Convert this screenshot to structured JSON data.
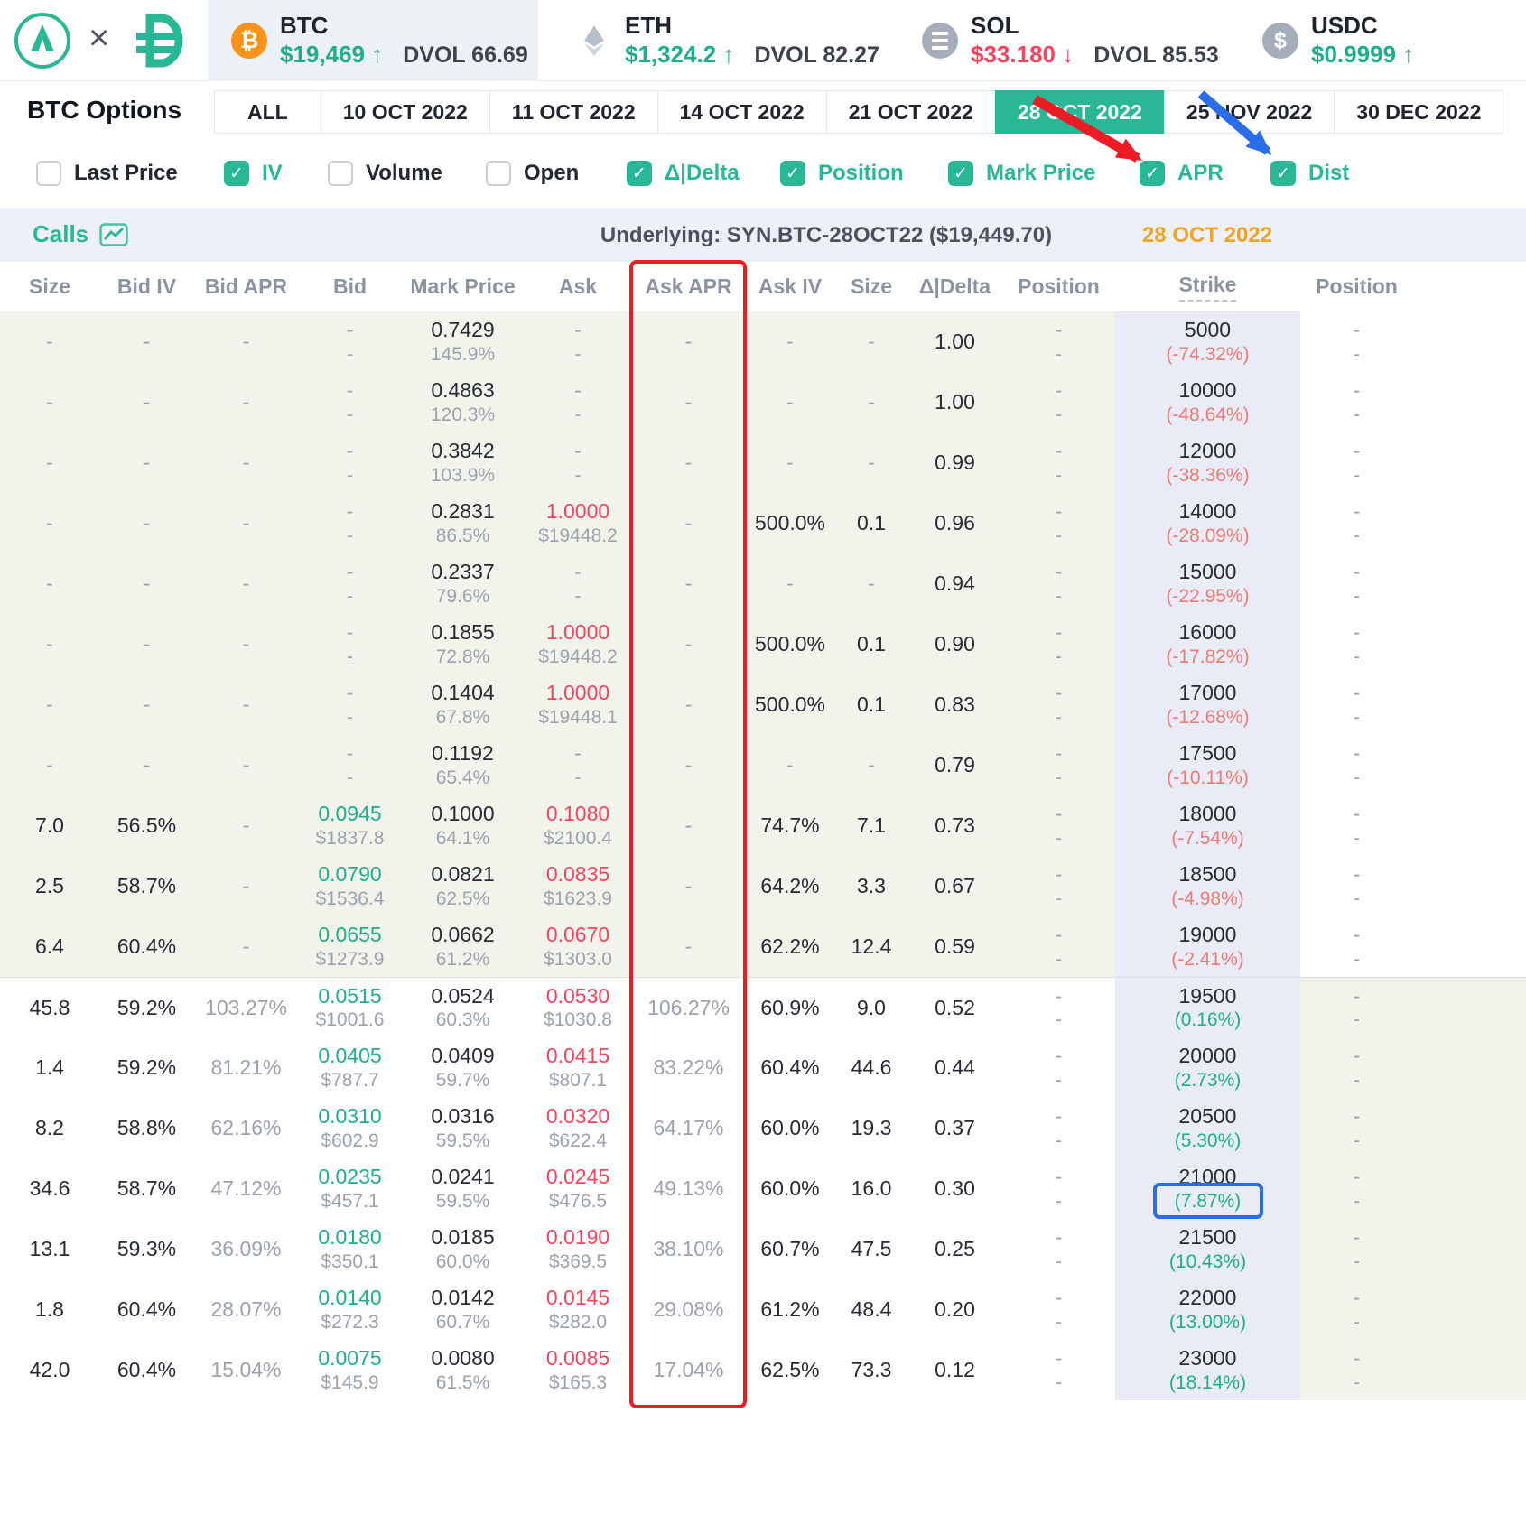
{
  "colors": {
    "accent": "#2ab795",
    "green": "#1fae8b",
    "red": "#f4455f",
    "negative_dist": "#f07a72",
    "expiry_orange": "#f0a32b",
    "annotation_red": "#ec1c24",
    "annotation_blue": "#2b6de8"
  },
  "top_bar": {
    "tickers": [
      {
        "symbol": "BTC",
        "icon": "btc-icon",
        "price": "$19,469",
        "direction": "up",
        "dvol": "DVOL 66.69",
        "selected": true
      },
      {
        "symbol": "ETH",
        "icon": "eth-icon",
        "price": "$1,324.2",
        "direction": "up",
        "dvol": "DVOL 82.27",
        "selected": false
      },
      {
        "symbol": "SOL",
        "icon": "sol-icon",
        "price": "$33.180",
        "direction": "down",
        "dvol": "DVOL 85.53",
        "selected": false
      },
      {
        "symbol": "USDC",
        "icon": "usdc-icon",
        "price": "$0.9999",
        "direction": "up",
        "dvol": "",
        "selected": false
      }
    ]
  },
  "nav": {
    "title": "BTC Options",
    "tabs": [
      {
        "label": "ALL",
        "selected": false
      },
      {
        "label": "10 OCT 2022",
        "selected": false
      },
      {
        "label": "11 OCT 2022",
        "selected": false
      },
      {
        "label": "14 OCT 2022",
        "selected": false
      },
      {
        "label": "21 OCT 2022",
        "selected": false
      },
      {
        "label": "28 OCT 2022",
        "selected": true
      },
      {
        "label": "25 NOV 2022",
        "selected": false
      },
      {
        "label": "30 DEC 2022",
        "selected": false
      }
    ]
  },
  "filters": [
    {
      "label": "Last Price",
      "checked": false
    },
    {
      "label": "IV",
      "checked": true
    },
    {
      "label": "Volume",
      "checked": false
    },
    {
      "label": "Open",
      "checked": false
    },
    {
      "label": "Δ|Delta",
      "checked": true
    },
    {
      "label": "Position",
      "checked": true
    },
    {
      "label": "Mark Price",
      "checked": true
    },
    {
      "label": "APR",
      "checked": true
    },
    {
      "label": "Dist",
      "checked": true
    }
  ],
  "chain": {
    "section_label": "Calls",
    "underlying": "Underlying: SYN.BTC-28OCT22 ($19,449.70)",
    "expiry": "28 OCT 2022",
    "columns": [
      "Size",
      "Bid IV",
      "Bid APR",
      "Bid",
      "Mark Price",
      "Ask",
      "Ask APR",
      "Ask IV",
      "Size",
      "Δ|Delta",
      "Position",
      "Strike",
      "Position"
    ],
    "rows": [
      {
        "size": "-",
        "bid_iv": "-",
        "bid_apr": "-",
        "bid": [
          "-",
          "-"
        ],
        "mark": [
          "0.7429",
          "145.9%"
        ],
        "ask": [
          "-",
          "-"
        ],
        "ask_apr": "-",
        "ask_iv": "-",
        "size2": "-",
        "delta": "1.00",
        "position": [
          "-",
          "-"
        ],
        "strike": "5000",
        "dist": "(-74.32%)",
        "dist_sign": "neg",
        "position2": [
          "-",
          "-"
        ],
        "itm": true
      },
      {
        "size": "-",
        "bid_iv": "-",
        "bid_apr": "-",
        "bid": [
          "-",
          "-"
        ],
        "mark": [
          "0.4863",
          "120.3%"
        ],
        "ask": [
          "-",
          "-"
        ],
        "ask_apr": "-",
        "ask_iv": "-",
        "size2": "-",
        "delta": "1.00",
        "position": [
          "-",
          "-"
        ],
        "strike": "10000",
        "dist": "(-48.64%)",
        "dist_sign": "neg",
        "position2": [
          "-",
          "-"
        ],
        "itm": true
      },
      {
        "size": "-",
        "bid_iv": "-",
        "bid_apr": "-",
        "bid": [
          "-",
          "-"
        ],
        "mark": [
          "0.3842",
          "103.9%"
        ],
        "ask": [
          "-",
          "-"
        ],
        "ask_apr": "-",
        "ask_iv": "-",
        "size2": "-",
        "delta": "0.99",
        "position": [
          "-",
          "-"
        ],
        "strike": "12000",
        "dist": "(-38.36%)",
        "dist_sign": "neg",
        "position2": [
          "-",
          "-"
        ],
        "itm": true
      },
      {
        "size": "-",
        "bid_iv": "-",
        "bid_apr": "-",
        "bid": [
          "-",
          "-"
        ],
        "mark": [
          "0.2831",
          "86.5%"
        ],
        "ask": [
          "1.0000",
          "$19448.2"
        ],
        "ask_apr": "-",
        "ask_iv": "500.0%",
        "size2": "0.1",
        "delta": "0.96",
        "position": [
          "-",
          "-"
        ],
        "strike": "14000",
        "dist": "(-28.09%)",
        "dist_sign": "neg",
        "position2": [
          "-",
          "-"
        ],
        "itm": true
      },
      {
        "size": "-",
        "bid_iv": "-",
        "bid_apr": "-",
        "bid": [
          "-",
          "-"
        ],
        "mark": [
          "0.2337",
          "79.6%"
        ],
        "ask": [
          "-",
          "-"
        ],
        "ask_apr": "-",
        "ask_iv": "-",
        "size2": "-",
        "delta": "0.94",
        "position": [
          "-",
          "-"
        ],
        "strike": "15000",
        "dist": "(-22.95%)",
        "dist_sign": "neg",
        "position2": [
          "-",
          "-"
        ],
        "itm": true
      },
      {
        "size": "-",
        "bid_iv": "-",
        "bid_apr": "-",
        "bid": [
          "-",
          "-"
        ],
        "mark": [
          "0.1855",
          "72.8%"
        ],
        "ask": [
          "1.0000",
          "$19448.2"
        ],
        "ask_apr": "-",
        "ask_iv": "500.0%",
        "size2": "0.1",
        "delta": "0.90",
        "position": [
          "-",
          "-"
        ],
        "strike": "16000",
        "dist": "(-17.82%)",
        "dist_sign": "neg",
        "position2": [
          "-",
          "-"
        ],
        "itm": true
      },
      {
        "size": "-",
        "bid_iv": "-",
        "bid_apr": "-",
        "bid": [
          "-",
          "-"
        ],
        "mark": [
          "0.1404",
          "67.8%"
        ],
        "ask": [
          "1.0000",
          "$19448.1"
        ],
        "ask_apr": "-",
        "ask_iv": "500.0%",
        "size2": "0.1",
        "delta": "0.83",
        "position": [
          "-",
          "-"
        ],
        "strike": "17000",
        "dist": "(-12.68%)",
        "dist_sign": "neg",
        "position2": [
          "-",
          "-"
        ],
        "itm": true
      },
      {
        "size": "-",
        "bid_iv": "-",
        "bid_apr": "-",
        "bid": [
          "-",
          "-"
        ],
        "mark": [
          "0.1192",
          "65.4%"
        ],
        "ask": [
          "-",
          "-"
        ],
        "ask_apr": "-",
        "ask_iv": "-",
        "size2": "-",
        "delta": "0.79",
        "position": [
          "-",
          "-"
        ],
        "strike": "17500",
        "dist": "(-10.11%)",
        "dist_sign": "neg",
        "position2": [
          "-",
          "-"
        ],
        "itm": true
      },
      {
        "size": "7.0",
        "bid_iv": "56.5%",
        "bid_apr": "-",
        "bid": [
          "0.0945",
          "$1837.8"
        ],
        "mark": [
          "0.1000",
          "64.1%"
        ],
        "ask": [
          "0.1080",
          "$2100.4"
        ],
        "ask_apr": "-",
        "ask_iv": "74.7%",
        "size2": "7.1",
        "delta": "0.73",
        "position": [
          "-",
          "-"
        ],
        "strike": "18000",
        "dist": "(-7.54%)",
        "dist_sign": "neg",
        "position2": [
          "-",
          "-"
        ],
        "itm": true
      },
      {
        "size": "2.5",
        "bid_iv": "58.7%",
        "bid_apr": "-",
        "bid": [
          "0.0790",
          "$1536.4"
        ],
        "mark": [
          "0.0821",
          "62.5%"
        ],
        "ask": [
          "0.0835",
          "$1623.9"
        ],
        "ask_apr": "-",
        "ask_iv": "64.2%",
        "size2": "3.3",
        "delta": "0.67",
        "position": [
          "-",
          "-"
        ],
        "strike": "18500",
        "dist": "(-4.98%)",
        "dist_sign": "neg",
        "position2": [
          "-",
          "-"
        ],
        "itm": true
      },
      {
        "size": "6.4",
        "bid_iv": "60.4%",
        "bid_apr": "-",
        "bid": [
          "0.0655",
          "$1273.9"
        ],
        "mark": [
          "0.0662",
          "61.2%"
        ],
        "ask": [
          "0.0670",
          "$1303.0"
        ],
        "ask_apr": "-",
        "ask_iv": "62.2%",
        "size2": "12.4",
        "delta": "0.59",
        "position": [
          "-",
          "-"
        ],
        "strike": "19000",
        "dist": "(-2.41%)",
        "dist_sign": "neg",
        "position2": [
          "-",
          "-"
        ],
        "itm": true
      },
      {
        "size": "45.8",
        "bid_iv": "59.2%",
        "bid_apr": "103.27%",
        "bid": [
          "0.0515",
          "$1001.6"
        ],
        "mark": [
          "0.0524",
          "60.3%"
        ],
        "ask": [
          "0.0530",
          "$1030.8"
        ],
        "ask_apr": "106.27%",
        "ask_iv": "60.9%",
        "size2": "9.0",
        "delta": "0.52",
        "position": [
          "-",
          "-"
        ],
        "strike": "19500",
        "dist": "(0.16%)",
        "dist_sign": "pos",
        "position2": [
          "-",
          "-"
        ],
        "itm": false
      },
      {
        "size": "1.4",
        "bid_iv": "59.2%",
        "bid_apr": "81.21%",
        "bid": [
          "0.0405",
          "$787.7"
        ],
        "mark": [
          "0.0409",
          "59.7%"
        ],
        "ask": [
          "0.0415",
          "$807.1"
        ],
        "ask_apr": "83.22%",
        "ask_iv": "60.4%",
        "size2": "44.6",
        "delta": "0.44",
        "position": [
          "-",
          "-"
        ],
        "strike": "20000",
        "dist": "(2.73%)",
        "dist_sign": "pos",
        "position2": [
          "-",
          "-"
        ],
        "itm": false
      },
      {
        "size": "8.2",
        "bid_iv": "58.8%",
        "bid_apr": "62.16%",
        "bid": [
          "0.0310",
          "$602.9"
        ],
        "mark": [
          "0.0316",
          "59.5%"
        ],
        "ask": [
          "0.0320",
          "$622.4"
        ],
        "ask_apr": "64.17%",
        "ask_iv": "60.0%",
        "size2": "19.3",
        "delta": "0.37",
        "position": [
          "-",
          "-"
        ],
        "strike": "20500",
        "dist": "(5.30%)",
        "dist_sign": "pos",
        "position2": [
          "-",
          "-"
        ],
        "itm": false
      },
      {
        "size": "34.6",
        "bid_iv": "58.7%",
        "bid_apr": "47.12%",
        "bid": [
          "0.0235",
          "$457.1"
        ],
        "mark": [
          "0.0241",
          "59.5%"
        ],
        "ask": [
          "0.0245",
          "$476.5"
        ],
        "ask_apr": "49.13%",
        "ask_iv": "60.0%",
        "size2": "16.0",
        "delta": "0.30",
        "position": [
          "-",
          "-"
        ],
        "strike": "21000",
        "dist": "(7.87%)",
        "dist_sign": "pos",
        "position2": [
          "-",
          "-"
        ],
        "itm": false,
        "highlighted": true
      },
      {
        "size": "13.1",
        "bid_iv": "59.3%",
        "bid_apr": "36.09%",
        "bid": [
          "0.0180",
          "$350.1"
        ],
        "mark": [
          "0.0185",
          "60.0%"
        ],
        "ask": [
          "0.0190",
          "$369.5"
        ],
        "ask_apr": "38.10%",
        "ask_iv": "60.7%",
        "size2": "47.5",
        "delta": "0.25",
        "position": [
          "-",
          "-"
        ],
        "strike": "21500",
        "dist": "(10.43%)",
        "dist_sign": "pos",
        "position2": [
          "-",
          "-"
        ],
        "itm": false
      },
      {
        "size": "1.8",
        "bid_iv": "60.4%",
        "bid_apr": "28.07%",
        "bid": [
          "0.0140",
          "$272.3"
        ],
        "mark": [
          "0.0142",
          "60.7%"
        ],
        "ask": [
          "0.0145",
          "$282.0"
        ],
        "ask_apr": "29.08%",
        "ask_iv": "61.2%",
        "size2": "48.4",
        "delta": "0.20",
        "position": [
          "-",
          "-"
        ],
        "strike": "22000",
        "dist": "(13.00%)",
        "dist_sign": "pos",
        "position2": [
          "-",
          "-"
        ],
        "itm": false
      },
      {
        "size": "42.0",
        "bid_iv": "60.4%",
        "bid_apr": "15.04%",
        "bid": [
          "0.0075",
          "$145.9"
        ],
        "mark": [
          "0.0080",
          "61.5%"
        ],
        "ask": [
          "0.0085",
          "$165.3"
        ],
        "ask_apr": "17.04%",
        "ask_iv": "62.5%",
        "size2": "73.3",
        "delta": "0.12",
        "position": [
          "-",
          "-"
        ],
        "strike": "23000",
        "dist": "(18.14%)",
        "dist_sign": "pos",
        "position2": [
          "-",
          "-"
        ],
        "itm": false
      }
    ]
  },
  "annotations": {
    "askapr_column_box_color": "#ec1c24",
    "apr_checkbox_arrow_color": "#ec1c24",
    "dist_checkbox_arrow_color": "#2b6de8",
    "dist_value_box_color": "#2b6de8",
    "dist_value_boxed": "(7.87%)"
  }
}
